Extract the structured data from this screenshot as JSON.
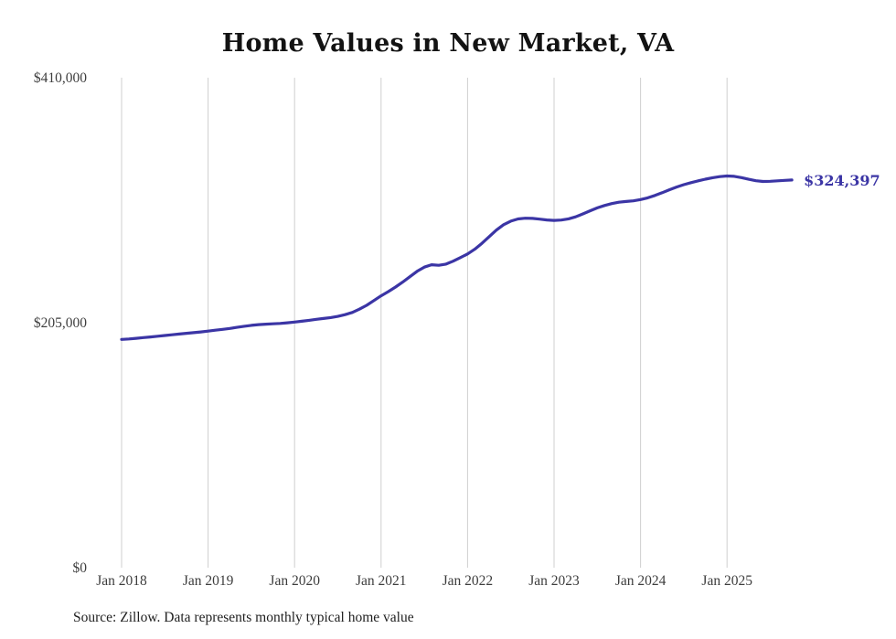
{
  "chart_data": {
    "type": "line",
    "title": "Home Values in New Market, VA",
    "source": "Source: Zillow. Data represents monthly typical home value",
    "x_start": "2018-01",
    "frequency": "monthly",
    "x_tick_labels": [
      "Jan 2018",
      "Jan 2019",
      "Jan 2020",
      "Jan 2021",
      "Jan 2022",
      "Jan 2023",
      "Jan 2024",
      "Jan 2025"
    ],
    "y_ticks": [
      {
        "value": 0,
        "label": "$0"
      },
      {
        "value": 205000,
        "label": "$205,000"
      },
      {
        "value": 410000,
        "label": "$410,000"
      }
    ],
    "ylim": [
      0,
      410000
    ],
    "latest_value": 324397,
    "end_label": "$324,397",
    "line_color": "#3b35a5",
    "gridline_color": "#cfcfcf",
    "legend": "none",
    "grid": "vertical-only",
    "values": [
      191000,
      191400,
      191900,
      192500,
      193100,
      193700,
      194300,
      194900,
      195500,
      196100,
      196700,
      197300,
      198000,
      198700,
      199400,
      200200,
      201100,
      202000,
      202800,
      203400,
      203800,
      204100,
      204400,
      204900,
      205500,
      206200,
      207000,
      207800,
      208500,
      209300,
      210300,
      211700,
      213600,
      216300,
      219500,
      223500,
      227500,
      231000,
      234800,
      239000,
      243500,
      248000,
      251500,
      253500,
      253000,
      254000,
      256500,
      259500,
      262500,
      266500,
      271500,
      277000,
      282500,
      287000,
      290000,
      291800,
      292400,
      292300,
      291700,
      291000,
      290600,
      290900,
      291900,
      293600,
      296000,
      298600,
      301100,
      303100,
      304700,
      305800,
      306400,
      307000,
      308000,
      309500,
      311500,
      313800,
      316200,
      318500,
      320500,
      322200,
      323700,
      325100,
      326300,
      327200,
      327800,
      327500,
      326400,
      325000,
      323800,
      323200,
      323300,
      323700,
      324100,
      324397
    ]
  }
}
